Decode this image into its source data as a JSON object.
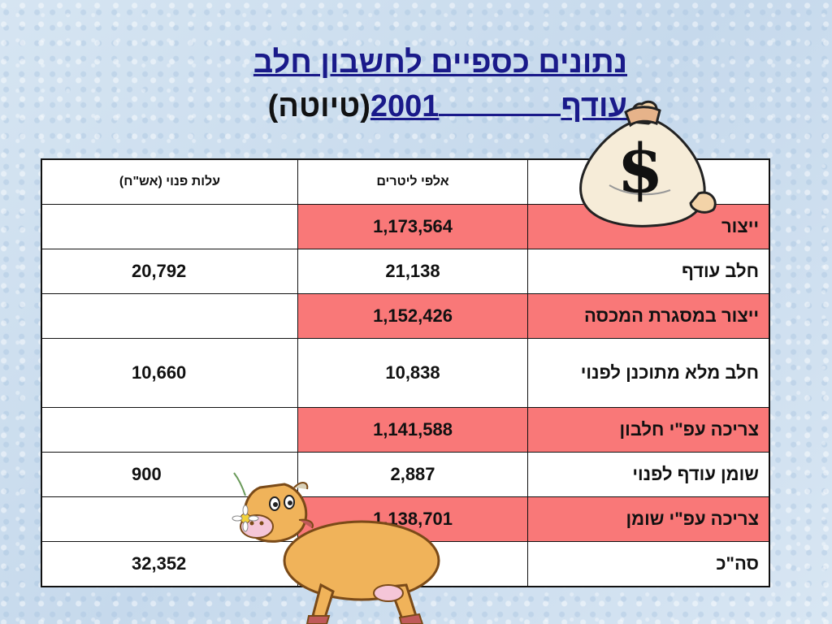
{
  "title": {
    "line1": "נתונים כספיים לחשבון חלב",
    "surplus_word": "עודף",
    "year": "2001",
    "draft": "(טיוטה)"
  },
  "table": {
    "headers": [
      "",
      "אלפי ליטרים",
      "עלות פנוי (אש\"ח)"
    ],
    "rows": [
      {
        "label": "ייצור",
        "liters": "1,173,564",
        "cost": "",
        "highlight": true
      },
      {
        "label": "חלב עודף",
        "liters": "21,138",
        "cost": "20,792",
        "highlight": false
      },
      {
        "label": "ייצור במסגרת המכסה",
        "liters": "1,152,426",
        "cost": "",
        "highlight": true
      },
      {
        "label": "חלב מלא מתוכנן לפנוי",
        "liters": "10,838",
        "cost": "10,660",
        "highlight": false
      },
      {
        "label": "צריכה עפ\"י חלבון",
        "liters": "1,141,588",
        "cost": "",
        "highlight": true
      },
      {
        "label": "שומן עודף לפנוי",
        "liters": "2,887",
        "cost": "900",
        "highlight": false
      },
      {
        "label": "צריכה עפ\"י שומן",
        "liters": "1,138,701",
        "cost": "",
        "highlight": true
      },
      {
        "label": "סה\"כ",
        "liters": "",
        "cost": "32,352",
        "highlight": false
      }
    ]
  },
  "clipart": {
    "money_bag_symbol": "$",
    "colors": {
      "highlight": "#f97878",
      "title": "#1a1a8a",
      "bag": "#f6ecd8",
      "cow": "#f0b35a"
    }
  }
}
